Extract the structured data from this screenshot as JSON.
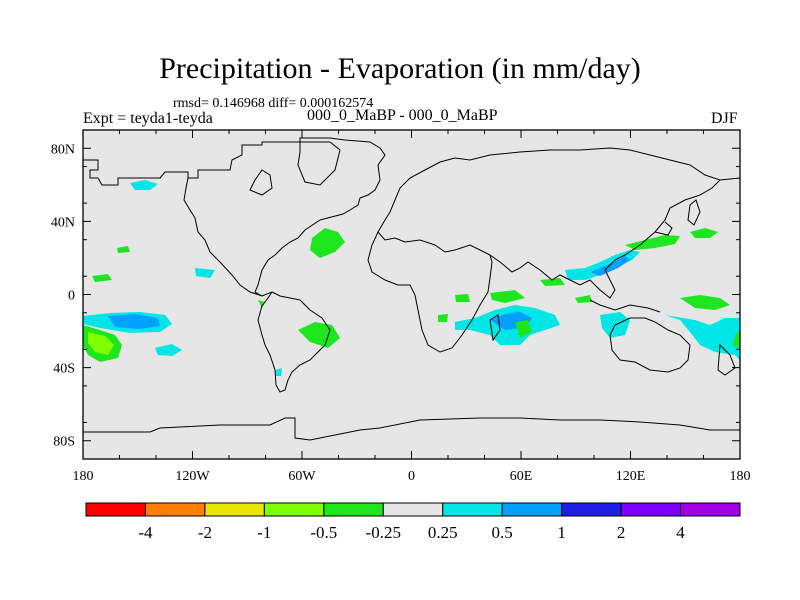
{
  "title": "Precipitation - Evaporation (in mm/day)",
  "stats": "rmsd= 0.146968 diff= 0.000162574",
  "expt": "Expt = teyda1-teyda",
  "diff_name": "000_0_MaBP - 000_0_MaBP",
  "season": "DJF",
  "chart_data": {
    "type": "heatmap",
    "title": "Precipitation - Evaporation (in mm/day)",
    "xlabel": "",
    "ylabel": "",
    "xlim": [
      -180,
      180
    ],
    "ylim": [
      -90,
      90
    ],
    "x_ticks": [
      "180",
      "120W",
      "60W",
      "0",
      "60E",
      "120E",
      "180"
    ],
    "y_ticks": [
      "80N",
      "40N",
      "0",
      "40S",
      "80S"
    ],
    "colorbar": {
      "labels": [
        "-4",
        "-2",
        "-1",
        "-0.5",
        "-0.25",
        "0.25",
        "0.5",
        "1",
        "2",
        "4"
      ],
      "colors": [
        "#ff0000",
        "#ff8000",
        "#e6e600",
        "#80ff00",
        "#1ee61e",
        "#e6e6e6",
        "#00e6e6",
        "#00a0ff",
        "#1e1ee6",
        "#8000ff",
        "#a000e6"
      ]
    },
    "background_color": "#e6e6e6",
    "regions": [
      {
        "name": "central pacific",
        "category": "0.5 to 1",
        "color": "#00a0ff",
        "lon": -145,
        "lat": -15
      },
      {
        "name": "central pacific",
        "category": "0.25 to 0.5",
        "color": "#00e6e6",
        "lon": -145,
        "lat": -15
      },
      {
        "name": "south pacific",
        "category": "-0.5 to -0.25",
        "color": "#1ee61e",
        "lon": -170,
        "lat": -27
      },
      {
        "name": "south pacific",
        "category": "-1 to -0.5",
        "color": "#80ff00",
        "lon": -170,
        "lat": -27
      },
      {
        "name": "north atlantic",
        "category": "-0.5 to -0.25",
        "color": "#1ee61e",
        "lon": -45,
        "lat": 30
      },
      {
        "name": "south atlantic",
        "category": "-0.5 to -0.25",
        "color": "#1ee61e",
        "lon": -48,
        "lat": -24
      },
      {
        "name": "north pacific",
        "category": "0.25 to 0.5",
        "color": "#00e6e6",
        "lon": -145,
        "lat": 62
      },
      {
        "name": "east pacific",
        "category": "0.25 to 0.5",
        "color": "#00e6e6",
        "lon": -115,
        "lat": 12
      },
      {
        "name": "indian ocean",
        "category": "0.25 to 0.5",
        "color": "#00e6e6",
        "lon": 55,
        "lat": -22
      },
      {
        "name": "indian ocean",
        "category": "0.5 to 1",
        "color": "#00a0ff",
        "lon": 55,
        "lat": -22
      },
      {
        "name": "indian ocean",
        "category": "-0.5 to -0.25",
        "color": "#1ee61e",
        "lon": 60,
        "lat": -5
      },
      {
        "name": "west pacific",
        "category": "0.25 to 0.5",
        "color": "#00e6e6",
        "lon": 120,
        "lat": 25
      },
      {
        "name": "west pacific",
        "category": "0.5 to 1",
        "color": "#00a0ff",
        "lon": 125,
        "lat": 30
      },
      {
        "name": "west pacific",
        "category": "-0.5 to -0.25",
        "color": "#1ee61e",
        "lon": 150,
        "lat": 40
      },
      {
        "name": "south west pacific",
        "category": "-0.5 to -0.25",
        "color": "#1ee61e",
        "lon": 150,
        "lat": -8
      },
      {
        "name": "south west pacific",
        "category": "0.25 to 0.5",
        "color": "#00e6e6",
        "lon": 150,
        "lat": -25
      }
    ]
  }
}
